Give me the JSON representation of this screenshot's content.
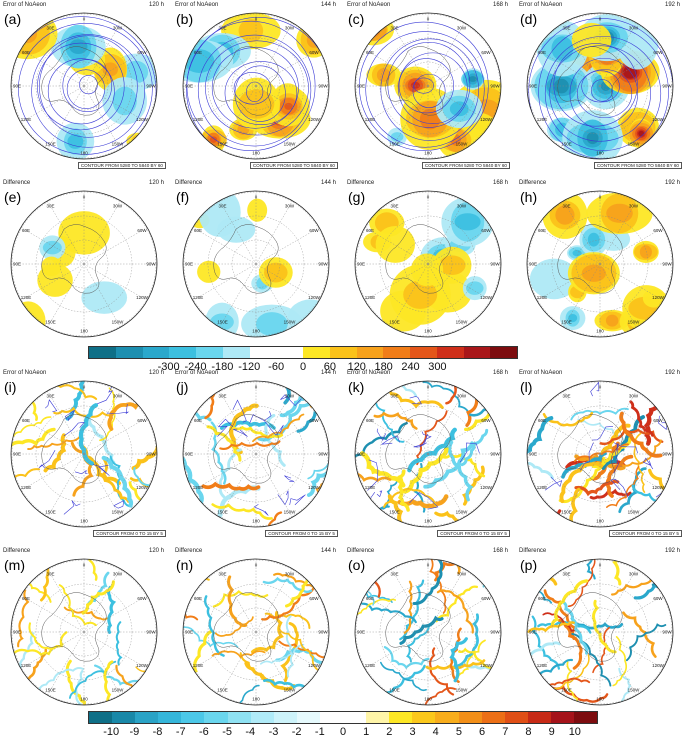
{
  "panels": [
    {
      "label": "(a)",
      "title": "Error of NoAeon",
      "hours": "120 h",
      "footer": "CONTOUR FROM 5280 TO 5840 BY 60"
    },
    {
      "label": "(b)",
      "title": "Error of NoAeon",
      "hours": "144 h",
      "footer": "CONTOUR FROM 5280 TO 5840 BY 60"
    },
    {
      "label": "(c)",
      "title": "Error of NoAeon",
      "hours": "168 h",
      "footer": "CONTOUR FROM 5280 TO 5840 BY 60"
    },
    {
      "label": "(d)",
      "title": "Error of NoAeon",
      "hours": "192 h",
      "footer": "CONTOUR FROM 5280 TO 5840 BY 60"
    },
    {
      "label": "(e)",
      "title": "Difference",
      "hours": "120 h",
      "footer": ""
    },
    {
      "label": "(f)",
      "title": "Difference",
      "hours": "144 h",
      "footer": ""
    },
    {
      "label": "(g)",
      "title": "Difference",
      "hours": "168 h",
      "footer": ""
    },
    {
      "label": "(h)",
      "title": "Difference",
      "hours": "192 h",
      "footer": ""
    },
    {
      "label": "(i)",
      "title": "Error of NoAeon",
      "hours": "120 h",
      "footer": "CONTOUR FROM 0 TO 15 BY 5"
    },
    {
      "label": "(j)",
      "title": "Error of NoAeon",
      "hours": "144 h",
      "footer": "CONTOUR FROM 0 TO 15 BY 5"
    },
    {
      "label": "(k)",
      "title": "Error of NoAeon",
      "hours": "168 h",
      "footer": "CONTOUR FROM 0 TO 15 BY 5"
    },
    {
      "label": "(l)",
      "title": "Error of NoAeon",
      "hours": "192 h",
      "footer": "CONTOUR FROM 0 TO 15 BY 5"
    },
    {
      "label": "(m)",
      "title": "Difference",
      "hours": "120 h",
      "footer": ""
    },
    {
      "label": "(n)",
      "title": "Difference",
      "hours": "144 h",
      "footer": ""
    },
    {
      "label": "(o)",
      "title": "Difference",
      "hours": "168 h",
      "footer": ""
    },
    {
      "label": "(p)",
      "title": "Difference",
      "hours": "192 h",
      "footer": ""
    }
  ],
  "map_labels": {
    "top": "0",
    "ne": "30W",
    "nw": "30E",
    "e_upper": "60W",
    "w_upper": "60E",
    "e": "90W",
    "w": "90E",
    "e_lower": "120W",
    "w_lower": "120E",
    "se": "150W",
    "sw": "150E",
    "bottom": "180"
  },
  "colorbar_top": {
    "ticks": [
      "-300",
      "-240",
      "-180",
      "-120",
      "-60",
      "0",
      "60",
      "120",
      "180",
      "240",
      "300"
    ],
    "colors": [
      "#0e6f87",
      "#1d8fb0",
      "#2aa8cc",
      "#3cc0e0",
      "#6ad6ee",
      "#aee9f6",
      "#ffffff",
      "#ffffff",
      "#fde725",
      "#fbc21a",
      "#f7a21c",
      "#f17d18",
      "#e4561a",
      "#cf2f1a",
      "#a9171a",
      "#7d0c0f"
    ]
  },
  "colorbar_bottom": {
    "ticks": [
      "-10",
      "-9",
      "-8",
      "-7",
      "-6",
      "-5",
      "-4",
      "-3",
      "-2",
      "-1",
      "0",
      "1",
      "2",
      "3",
      "4",
      "5",
      "6",
      "7",
      "8",
      "9",
      "10"
    ],
    "colors": [
      "#0e6f87",
      "#1988a8",
      "#2aa3c6",
      "#35b6da",
      "#4cc8e8",
      "#6ad6ee",
      "#8fe2f3",
      "#b0ebf8",
      "#cdf3fa",
      "#e6fafd",
      "#ffffff",
      "#ffffff",
      "#fff5a8",
      "#fde725",
      "#fbc81c",
      "#f8ad1c",
      "#f38f18",
      "#ec6f16",
      "#e04f16",
      "#c72a16",
      "#a5131a",
      "#7d0c0f"
    ]
  }
}
